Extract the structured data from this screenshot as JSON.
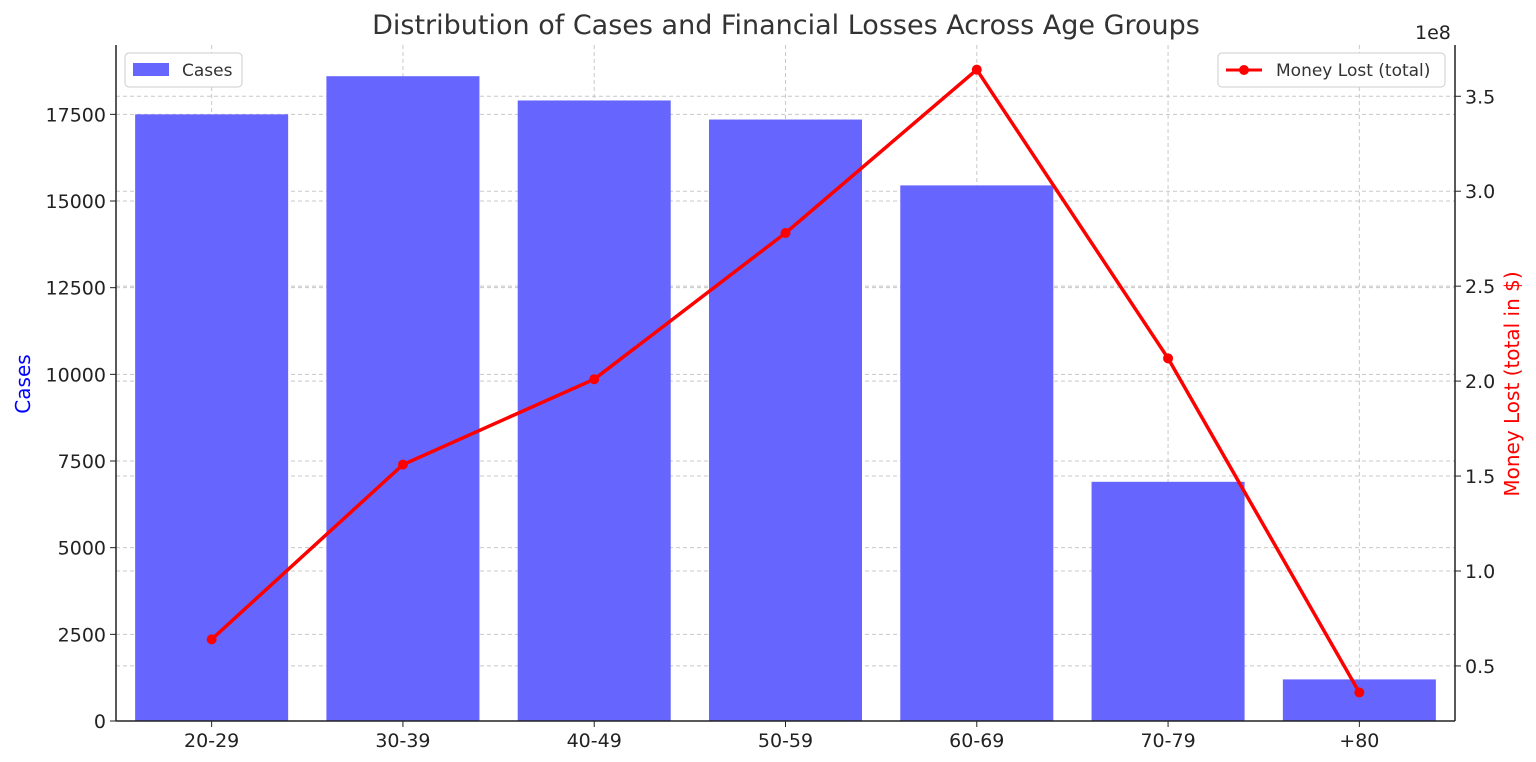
{
  "chart_data": {
    "type": "bar",
    "title": "Distribution of Cases and Financial Losses Across Age Groups",
    "categories": [
      "20-29",
      "30-39",
      "40-49",
      "50-59",
      "60-69",
      "70-79",
      "+80"
    ],
    "series": [
      {
        "name": "Cases",
        "type": "bar",
        "axis": "left",
        "color": "#6666ff",
        "values": [
          17500,
          18600,
          17900,
          17350,
          15450,
          6900,
          1200
        ]
      },
      {
        "name": "Money Lost (total)",
        "type": "line",
        "axis": "right",
        "color": "#ff0000",
        "marker": "circle",
        "values": [
          64000000,
          156000000,
          201000000,
          278000000,
          364000000,
          212000000,
          36000000
        ]
      }
    ],
    "ylabel": "Cases",
    "ylabel_color": "#0000ff",
    "ylim": [
      0,
      19500
    ],
    "yticks": [
      0,
      2500,
      5000,
      7500,
      10000,
      12500,
      15000,
      17500
    ],
    "ylabel_right": "Money Lost (total in $)",
    "ylabel_right_color": "#ff0000",
    "ylim_right": [
      21000000,
      377000000
    ],
    "yticks_right": [
      0.5,
      1.0,
      1.5,
      2.0,
      2.5,
      3.0,
      3.5
    ],
    "yticks_right_labels": [
      "0.5",
      "1.0",
      "1.5",
      "2.0",
      "2.5",
      "3.0",
      "3.5"
    ],
    "right_axis_multiplier": "1e8",
    "grid": true,
    "legend_left_position": "top-left",
    "legend_right_position": "top-right"
  }
}
